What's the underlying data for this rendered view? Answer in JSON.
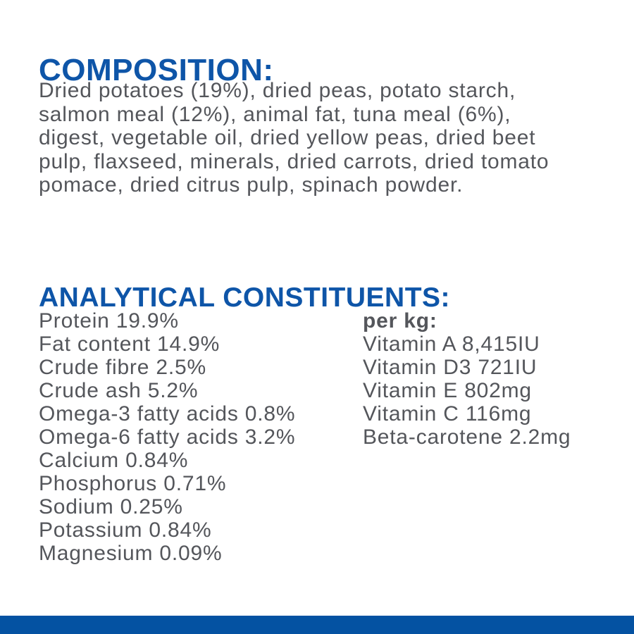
{
  "colors": {
    "background": "#ffffff",
    "brand_blue_heading": "#0e55a8",
    "footer_bar_blue": "#0452a2",
    "body_text_gray": "#54565b"
  },
  "composition": {
    "heading": "COMPOSITION:",
    "lines": [
      "Dried potatoes (19%), dried peas, potato starch,",
      "salmon meal (12%), animal fat, tuna meal (6%),",
      "digest, vegetable oil, dried yellow peas, dried beet",
      "pulp, flaxseed, minerals, dried carrots, dried tomato",
      "pomace, dried citrus pulp, spinach powder."
    ]
  },
  "analytical_constituents": {
    "heading": "ANALYTICAL CONSTITUENTS:",
    "nutrients": [
      {
        "name": "Protein",
        "value": "19.9%"
      },
      {
        "name": "Fat content",
        "value": "14.9%"
      },
      {
        "name": "Crude fibre",
        "value": "2.5%"
      },
      {
        "name": "Crude ash",
        "value": "5.2%"
      },
      {
        "name": "Omega-3 fatty acids",
        "value": "0.8%"
      },
      {
        "name": "Omega-6 fatty acids",
        "value": "3.2%"
      },
      {
        "name": "Calcium",
        "value": "0.84%"
      },
      {
        "name": "Phosphorus",
        "value": "0.71%"
      },
      {
        "name": "Sodium",
        "value": "0.25%"
      },
      {
        "name": "Potassium",
        "value": "0.84%"
      },
      {
        "name": "Magnesium",
        "value": "0.09%"
      }
    ],
    "per_kg": {
      "label": "per kg:",
      "vitamins": [
        {
          "name": "Vitamin A",
          "value": "8,415IU"
        },
        {
          "name": "Vitamin D3",
          "value": "721IU"
        },
        {
          "name": "Vitamin E",
          "value": "802mg"
        },
        {
          "name": "Vitamin C",
          "value": "116mg"
        },
        {
          "name": "Beta-carotene",
          "value": "2.2mg"
        }
      ]
    }
  }
}
